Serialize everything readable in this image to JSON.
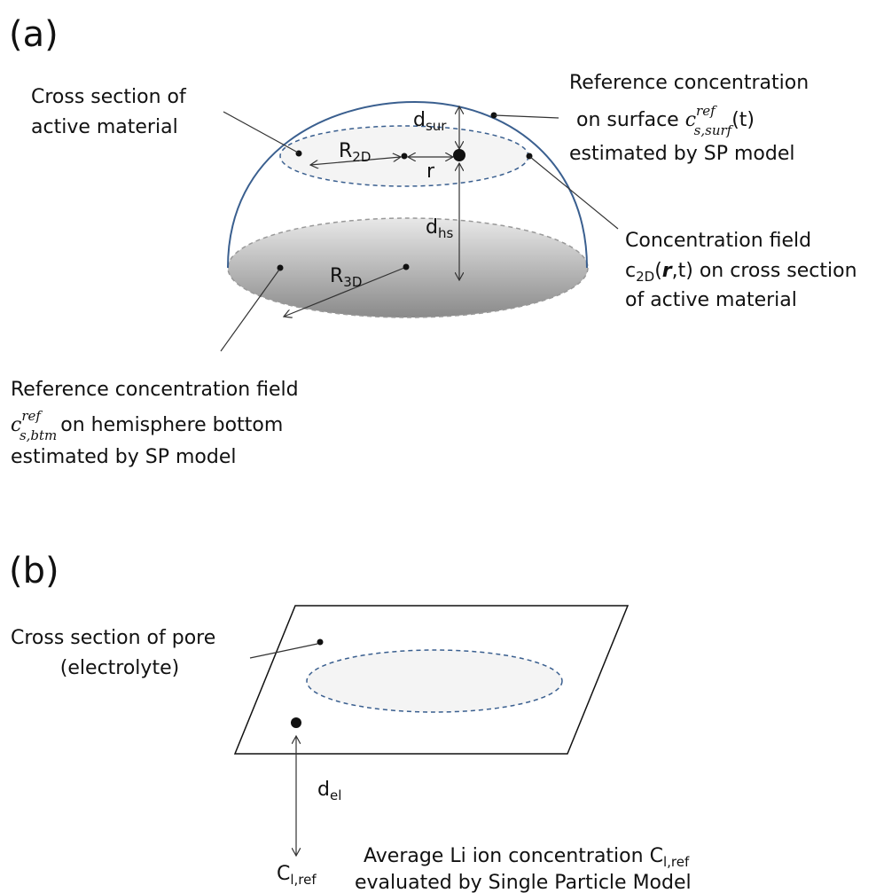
{
  "panel_a": {
    "label": "(a)",
    "cross_section": {
      "line1": "Cross section of",
      "line2": "active material"
    },
    "surface_ref": {
      "line1": "Reference concentration",
      "prefix": "on surface",
      "symbol": "c",
      "sup": "ref",
      "sub": "s,surf",
      "suffix": "(t)",
      "line3": "estimated by SP model"
    },
    "field_2d": {
      "line1": "Concentration field",
      "symbol": "c",
      "sub": "2D",
      "open": "(",
      "bold": "r",
      "close": ",t) on cross section",
      "line3": "of active material"
    },
    "bottom_ref": {
      "line1": "Reference concentration field",
      "symbol": "c",
      "sup": "ref",
      "sub": "s,btm",
      "suffix": "on hemisphere bottom",
      "line3": "estimated by SP model"
    },
    "d_sur": {
      "symbol": "d",
      "sub": "sur"
    },
    "d_hs": {
      "symbol": "d",
      "sub": "hs"
    },
    "r_2d": {
      "symbol": "R",
      "sub": "2D"
    },
    "r_3d": {
      "symbol": "R",
      "sub": "3D"
    },
    "r": "r"
  },
  "panel_b": {
    "label": "(b)",
    "pore": {
      "line1": "Cross section of pore",
      "line2": "(electrolyte)"
    },
    "d_el": {
      "symbol": "d",
      "sub": "el"
    },
    "c_ref": {
      "symbol": "C",
      "sub": "l,ref"
    },
    "average": {
      "prefix": "Average Li ion concentration",
      "symbol": "C",
      "sub": "l,ref",
      "line2": "evaluated by Single Particle Model"
    }
  }
}
